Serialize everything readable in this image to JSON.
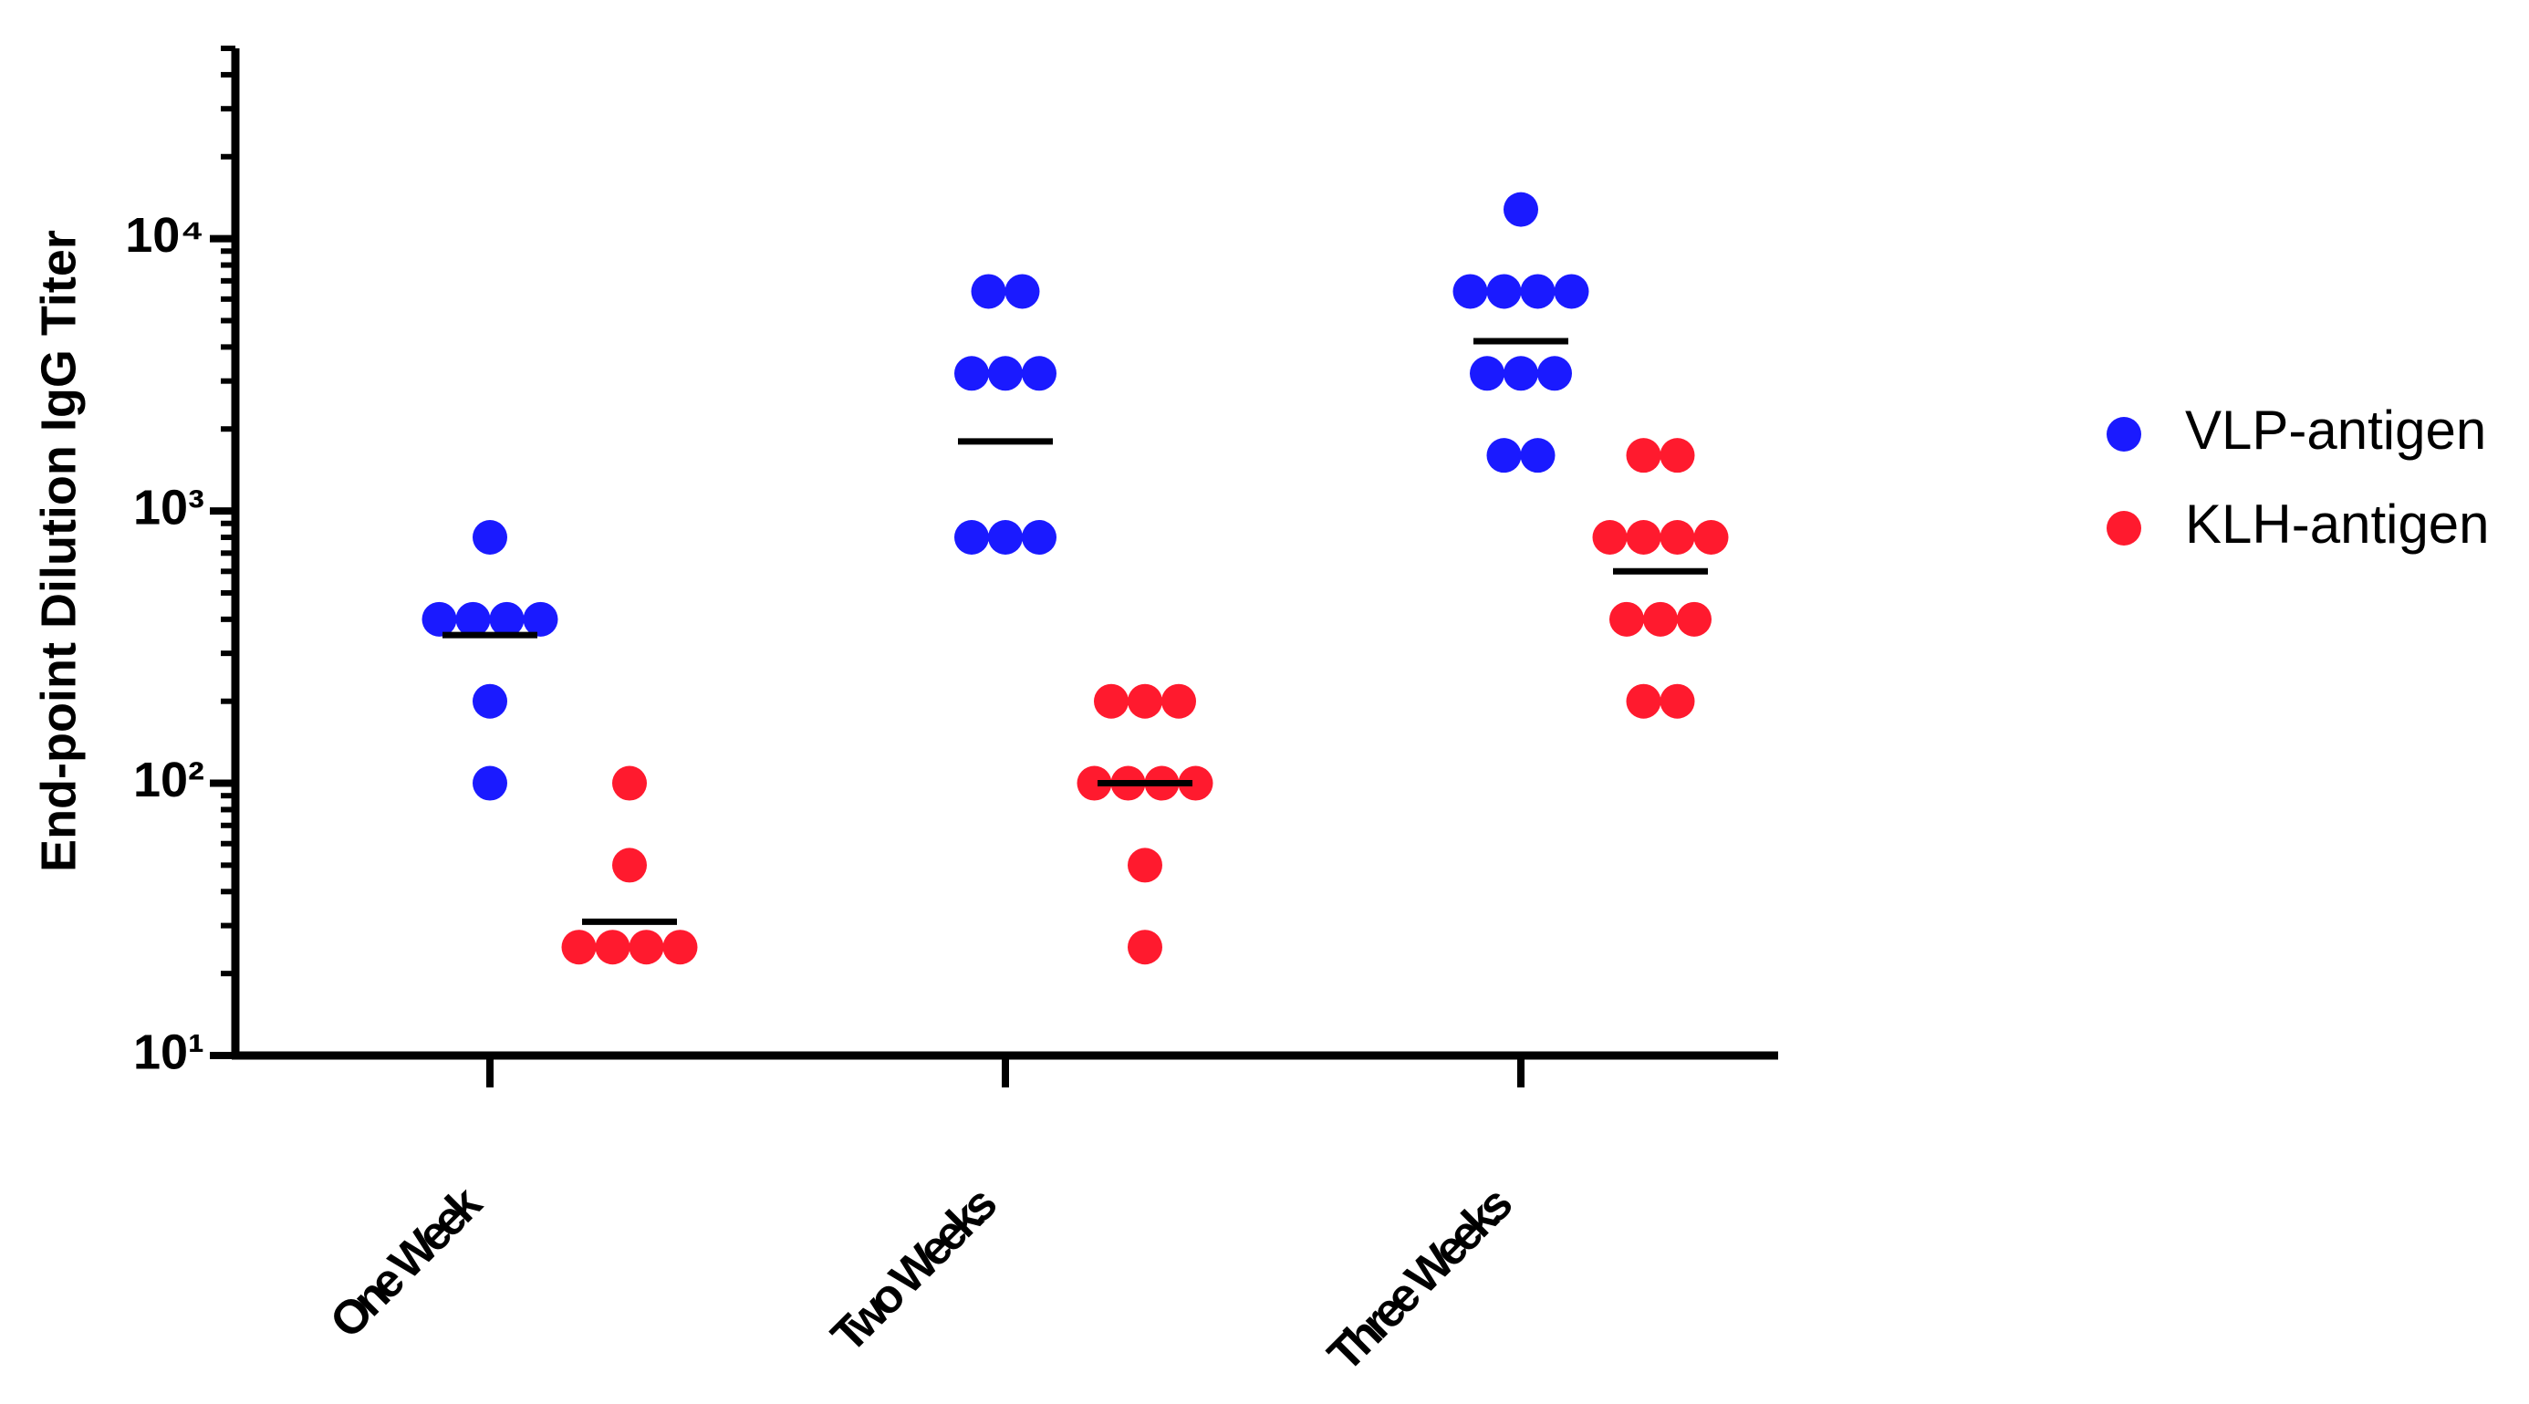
{
  "chart_data": {
    "type": "scatter",
    "y_label": "End-point Dilution IgG Titer",
    "categories": [
      "One Week",
      "Two Weeks",
      "Three Weeks"
    ],
    "series": [
      {
        "name": "VLP-antigen",
        "color": "#1a1aff",
        "values": [
          [
            800,
            400,
            400,
            400,
            400,
            200,
            100
          ],
          [
            6400,
            6400,
            3200,
            3200,
            3200,
            800,
            800,
            800
          ],
          [
            12800,
            6400,
            6400,
            6400,
            6400,
            3200,
            3200,
            3200,
            1600,
            1600
          ]
        ],
        "means": [
          350,
          1800,
          4200
        ]
      },
      {
        "name": "KLH-antigen",
        "color": "#ff1a2e",
        "values": [
          [
            100,
            50,
            25,
            25,
            25,
            25
          ],
          [
            200,
            200,
            200,
            100,
            100,
            100,
            100,
            50,
            25
          ],
          [
            1600,
            1600,
            800,
            800,
            800,
            800,
            400,
            400,
            400,
            200,
            200
          ]
        ],
        "means": [
          31,
          100,
          600
        ]
      }
    ],
    "log_scale": true,
    "ylim": [
      10,
      50000
    ],
    "yticks": [
      {
        "value": 10,
        "label": "10¹"
      },
      {
        "value": 100,
        "label": "10²"
      },
      {
        "value": 1000,
        "label": "10³"
      },
      {
        "value": 10000,
        "label": "10⁴"
      }
    ],
    "minor_yticks": [
      20,
      30,
      40,
      50,
      60,
      70,
      80,
      90,
      200,
      300,
      400,
      500,
      600,
      700,
      800,
      900,
      2000,
      3000,
      4000,
      5000,
      6000,
      7000,
      8000,
      9000,
      20000,
      30000,
      40000,
      50000
    ],
    "legend": "right"
  }
}
